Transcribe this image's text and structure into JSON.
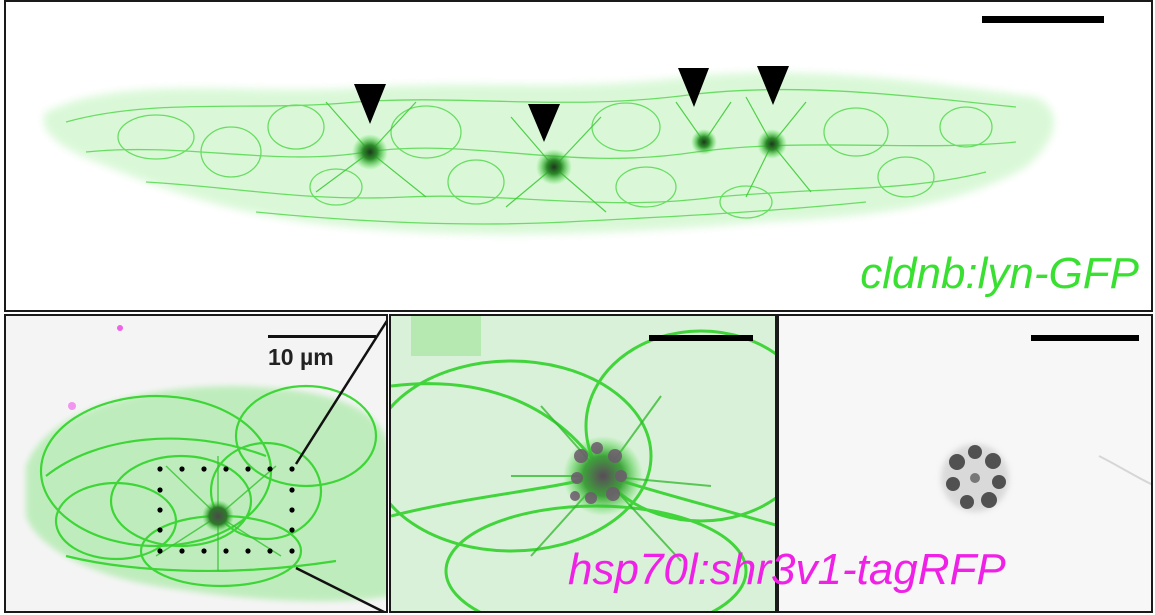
{
  "figure": {
    "top_label": "cldnb:lyn-GFP",
    "bottom_label": "hsp70l:shr3v1-tagRFP",
    "scale_bar_text": "10 µm"
  },
  "colors": {
    "membrane_green": "#39e032",
    "rfp_magenta": "#f021e6",
    "border": "#1a1a1a"
  },
  "icons": [
    "arrowhead-marker",
    "scale-bar",
    "dotted-roi-box"
  ]
}
